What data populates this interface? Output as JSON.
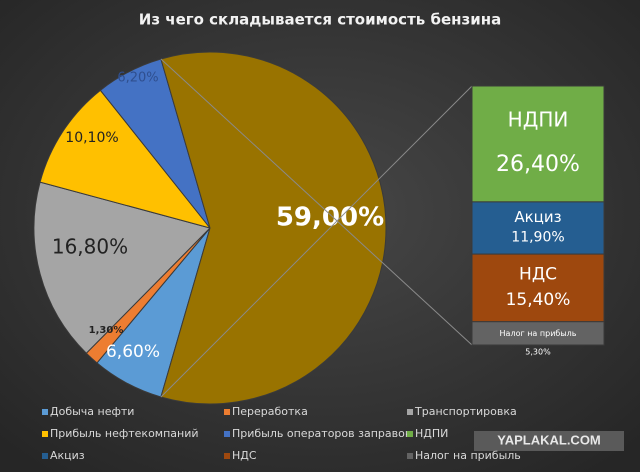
{
  "chart_data": {
    "type": "pie-of-bar",
    "title": "Из чего складывается  стоимость  бензина",
    "pie": {
      "categories": [
        "Добыча нефти",
        "Переработка",
        "Транспортировка",
        "Прибыль нефтекомпаний",
        "Прибыль операторов  заправок",
        null
      ],
      "values": [
        6.6,
        1.3,
        16.8,
        10.1,
        6.2,
        59.0
      ],
      "value_labels": [
        "6,60%",
        "1,30%",
        "16,80%",
        "10,10%",
        "6,20%",
        "59,00%"
      ],
      "colors": [
        "#5b9bd5",
        "#ed7d31",
        "#a5a5a5",
        "#ffc000",
        "#4472c4",
        "#997300"
      ]
    },
    "bar": {
      "categories": [
        "НДПИ",
        "Акциз",
        "НДС",
        "Налог на прибыль"
      ],
      "values": [
        26.4,
        11.9,
        15.4,
        5.3
      ],
      "value_labels": [
        "26,40%",
        "11,90%",
        "15,40%",
        "5,30%"
      ],
      "colors": [
        "#70ad47",
        "#255e91",
        "#9e480e",
        "#636363"
      ]
    },
    "watermark": "YAPLAKAL.COM"
  }
}
